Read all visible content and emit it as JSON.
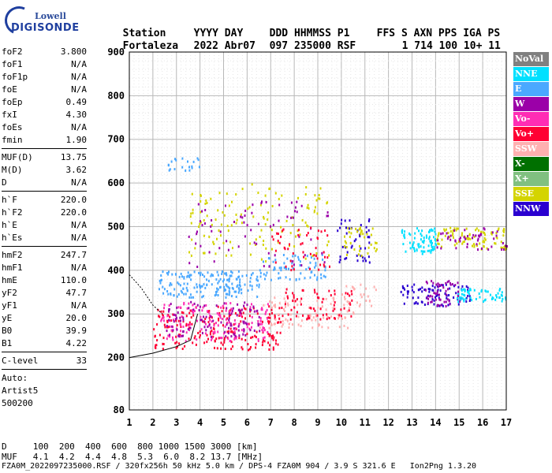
{
  "logo": {
    "brand_top": "Lowell",
    "brand_main": "DIGISONDE"
  },
  "header": {
    "labels": [
      "Station",
      "YYYY DAY",
      "DDD HHMMSS P1",
      "FFS S AXN PPS IGA PS"
    ],
    "values": [
      "Fortaleza",
      "2022 Abr07",
      "097 235000 RSF",
      "1 714 100 10+ 11"
    ]
  },
  "params": {
    "group1": [
      [
        "foF2",
        "3.800"
      ],
      [
        "foF1",
        "N/A"
      ],
      [
        "foF1p",
        "N/A"
      ],
      [
        "foE",
        "N/A"
      ],
      [
        "foEp",
        "0.49"
      ],
      [
        "fxI",
        "4.30"
      ],
      [
        "foEs",
        "N/A"
      ],
      [
        "fmin",
        "1.90"
      ]
    ],
    "group2": [
      [
        "MUF(D)",
        "13.75"
      ],
      [
        "M(D)",
        "3.62"
      ],
      [
        "D",
        "N/A"
      ]
    ],
    "group3": [
      [
        "h`F",
        "220.0"
      ],
      [
        "h`F2",
        "220.0"
      ],
      [
        "h`E",
        "N/A"
      ],
      [
        "h`Es",
        "N/A"
      ]
    ],
    "group4": [
      [
        "hmF2",
        "247.7"
      ],
      [
        "hmF1",
        "N/A"
      ],
      [
        "hmE",
        "110.0"
      ],
      [
        "yF2",
        "47.7"
      ],
      [
        "yF1",
        "N/A"
      ],
      [
        "yE",
        "20.0"
      ],
      [
        "B0",
        "39.9"
      ],
      [
        "B1",
        "4.22"
      ]
    ],
    "group5": [
      [
        "C-level",
        "33"
      ]
    ],
    "auto": [
      "Auto:",
      "Artist5",
      "500200"
    ]
  },
  "chart_data": {
    "type": "scatter",
    "xlabel": "",
    "ylabel": "",
    "xlim": [
      1,
      17
    ],
    "ylim": [
      80,
      900
    ],
    "x_ticks": [
      1,
      2,
      3,
      4,
      5,
      6,
      7,
      8,
      9,
      10,
      11,
      12,
      13,
      14,
      15,
      16,
      17
    ],
    "y_ticks": [
      80,
      200,
      300,
      400,
      500,
      600,
      700,
      800,
      900
    ],
    "grid": true,
    "series": [
      {
        "name": "NNE",
        "color": "#00e0ff"
      },
      {
        "name": "E",
        "color": "#4aa8ff"
      },
      {
        "name": "W",
        "color": "#9b00a8"
      },
      {
        "name": "Vo-",
        "color": "#ff2db4"
      },
      {
        "name": "Vo+",
        "color": "#ff0033"
      },
      {
        "name": "SSW",
        "color": "#ffb0b0"
      },
      {
        "name": "X-",
        "color": "#007000"
      },
      {
        "name": "X+",
        "color": "#80c080"
      },
      {
        "name": "SSE",
        "color": "#d4d400"
      },
      {
        "name": "NNW",
        "color": "#2a00d0"
      }
    ],
    "echo_clusters": [
      {
        "series": "E",
        "x": [
          2.2,
          6.5
        ],
        "y": [
          340,
          400
        ],
        "n": 180
      },
      {
        "series": "E",
        "x": [
          6.5,
          9.4
        ],
        "y": [
          380,
          440
        ],
        "n": 70
      },
      {
        "series": "Vo+",
        "x": [
          2.0,
          7.5
        ],
        "y": [
          220,
          320
        ],
        "n": 220
      },
      {
        "series": "Vo-",
        "x": [
          2.3,
          7.0
        ],
        "y": [
          240,
          330
        ],
        "n": 140
      },
      {
        "series": "W",
        "x": [
          2.5,
          6.5
        ],
        "y": [
          250,
          330
        ],
        "n": 110
      },
      {
        "series": "SSW",
        "x": [
          6.5,
          10.3
        ],
        "y": [
          270,
          340
        ],
        "n": 90
      },
      {
        "series": "Vo+",
        "x": [
          7.5,
          10.5
        ],
        "y": [
          290,
          360
        ],
        "n": 70
      },
      {
        "series": "SSE",
        "x": [
          3.5,
          9.5
        ],
        "y": [
          420,
          600
        ],
        "n": 130
      },
      {
        "series": "W",
        "x": [
          3.5,
          9.5
        ],
        "y": [
          410,
          560
        ],
        "n": 70
      },
      {
        "series": "Vo+",
        "x": [
          7.0,
          9.5
        ],
        "y": [
          400,
          500
        ],
        "n": 50
      },
      {
        "series": "NNW",
        "x": [
          9.8,
          11.2
        ],
        "y": [
          420,
          520
        ],
        "n": 45
      },
      {
        "series": "SSE",
        "x": [
          10.0,
          11.5
        ],
        "y": [
          430,
          500
        ],
        "n": 40
      },
      {
        "series": "NNE",
        "x": [
          12.5,
          14.0
        ],
        "y": [
          440,
          500
        ],
        "n": 80
      },
      {
        "series": "SSE",
        "x": [
          14.0,
          17.0
        ],
        "y": [
          450,
          500
        ],
        "n": 90
      },
      {
        "series": "W",
        "x": [
          14.0,
          17.0
        ],
        "y": [
          450,
          500
        ],
        "n": 50
      },
      {
        "series": "NNW",
        "x": [
          12.5,
          15.5
        ],
        "y": [
          320,
          370
        ],
        "n": 90
      },
      {
        "series": "NNE",
        "x": [
          14.8,
          17.0
        ],
        "y": [
          330,
          360
        ],
        "n": 60
      },
      {
        "series": "W",
        "x": [
          13.5,
          15.0
        ],
        "y": [
          320,
          380
        ],
        "n": 50
      },
      {
        "series": "SSW",
        "x": [
          10.0,
          11.5
        ],
        "y": [
          300,
          370
        ],
        "n": 30
      },
      {
        "series": "E",
        "x": [
          2.5,
          4.0
        ],
        "y": [
          630,
          660
        ],
        "n": 20
      }
    ],
    "profile_curve": {
      "x": [
        1.0,
        2.0,
        3.0,
        3.6,
        3.9
      ],
      "y": [
        200,
        210,
        225,
        240,
        300
      ]
    },
    "profile_curve_upper": {
      "x": [
        1.0,
        1.5,
        2.0,
        2.4
      ],
      "y": [
        390,
        360,
        320,
        300
      ]
    }
  },
  "footer": {
    "line1": "D     100  200  400  600  800 1000 1500 3000 [km]",
    "line2": "MUF   4.1  4.2  4.4  4.8  5.3  6.0  8.2 13.7 [MHz]",
    "line3": "FZA0M_2022097235000.RSF / 320fx256h 50 kHz 5.0 km / DPS-4 FZA0M 904 / 3.9 S 321.6 E   Ion2Png 1.3.20"
  },
  "legend": [
    {
      "label": "NoVal",
      "color": "#808080"
    },
    {
      "label": "NNE",
      "color": "#00e0ff"
    },
    {
      "label": "E",
      "color": "#4aa8ff"
    },
    {
      "label": "W",
      "color": "#9b00a8"
    },
    {
      "label": "Vo-",
      "color": "#ff2db4"
    },
    {
      "label": "Vo+",
      "color": "#ff0033"
    },
    {
      "label": "SSW",
      "color": "#ffb0b0"
    },
    {
      "label": "X-",
      "color": "#007000"
    },
    {
      "label": "X+",
      "color": "#80c080"
    },
    {
      "label": "SSE",
      "color": "#d4d400"
    },
    {
      "label": "NNW",
      "color": "#2a00d0"
    }
  ]
}
